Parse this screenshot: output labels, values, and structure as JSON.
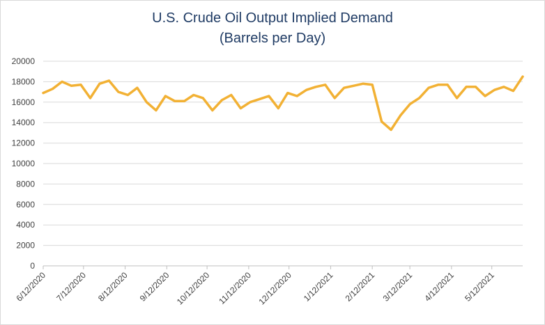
{
  "chart_data": {
    "type": "line",
    "title": "U.S. Crude Oil Output Implied Demand",
    "subtitle": "(Barrels per Day)",
    "xlabel": "",
    "ylabel": "",
    "ylim": [
      0,
      20000
    ],
    "yticks": [
      0,
      2000,
      4000,
      6000,
      8000,
      10000,
      12000,
      14000,
      16000,
      18000,
      20000
    ],
    "xtick_labels": [
      "6/12/2020",
      "7/12/2020",
      "8/12/2020",
      "9/12/2020",
      "10/12/2020",
      "11/12/2020",
      "12/12/2020",
      "1/12/2021",
      "2/12/2021",
      "3/12/2021",
      "4/12/2021",
      "5/12/2021"
    ],
    "grid": "horizontal",
    "legend": "none",
    "line_color": "#F2B134",
    "series": [
      {
        "x": [
          "2020-06-12",
          "2020-06-19",
          "2020-06-26",
          "2020-07-03",
          "2020-07-10",
          "2020-07-17",
          "2020-07-24",
          "2020-07-31",
          "2020-08-07",
          "2020-08-14",
          "2020-08-21",
          "2020-08-28",
          "2020-09-04",
          "2020-09-11",
          "2020-09-18",
          "2020-09-25",
          "2020-10-02",
          "2020-10-09",
          "2020-10-16",
          "2020-10-23",
          "2020-10-30",
          "2020-11-06",
          "2020-11-13",
          "2020-11-20",
          "2020-11-27",
          "2020-12-04",
          "2020-12-11",
          "2020-12-18",
          "2020-12-25",
          "2021-01-01",
          "2021-01-08",
          "2021-01-15",
          "2021-01-22",
          "2021-01-29",
          "2021-02-05",
          "2021-02-12",
          "2021-02-19",
          "2021-02-26",
          "2021-03-05",
          "2021-03-12",
          "2021-03-19",
          "2021-03-26",
          "2021-04-02",
          "2021-04-09",
          "2021-04-16",
          "2021-04-23",
          "2021-04-30",
          "2021-05-07",
          "2021-05-14",
          "2021-05-21",
          "2021-05-28",
          "2021-06-04"
        ],
        "values": [
          16900,
          17300,
          18000,
          17600,
          17700,
          16400,
          17800,
          18100,
          17000,
          16700,
          17400,
          16000,
          15200,
          16600,
          16100,
          16100,
          16700,
          16400,
          15200,
          16200,
          16700,
          15400,
          16000,
          16300,
          16600,
          15400,
          16900,
          16600,
          17200,
          17500,
          17700,
          16400,
          17400,
          17600,
          17800,
          17700,
          14100,
          13300,
          14700,
          15800,
          16400,
          17400,
          17700,
          17700,
          16400,
          17500,
          17500,
          16600,
          17200,
          17500,
          17100,
          18500
        ]
      }
    ]
  }
}
